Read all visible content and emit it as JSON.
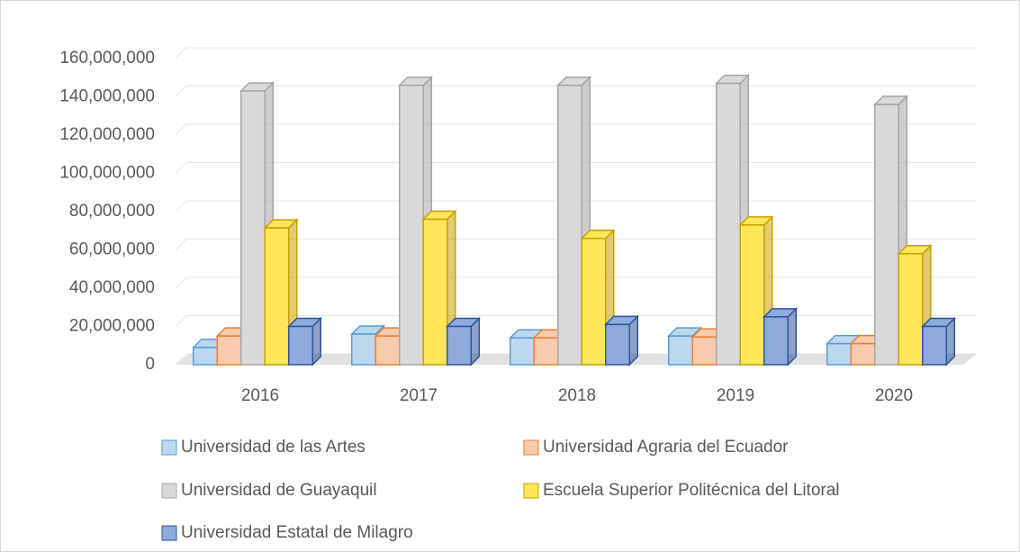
{
  "chart_data": {
    "type": "bar3d",
    "categories": [
      "2016",
      "2017",
      "2018",
      "2019",
      "2020"
    ],
    "series": [
      {
        "name": "Universidad de las Artes",
        "color": "#bdd7ee",
        "edge": "#5b9bd5",
        "values": [
          9000000,
          16000000,
          14000000,
          15000000,
          11000000
        ]
      },
      {
        "name": "Universidad Agraria del Ecuador",
        "color": "#f8cbad",
        "edge": "#ed7d31",
        "values": [
          15000000,
          15000000,
          14000000,
          14500000,
          11000000
        ]
      },
      {
        "name": "Universidad de Guayaquil",
        "color": "#d9d9d9",
        "edge": "#a5a5a5",
        "values": [
          143000000,
          146000000,
          146000000,
          147000000,
          136000000
        ]
      },
      {
        "name": "Escuela Superior Politécnica del Litoral",
        "color": "#ffe55a",
        "edge": "#c9a000",
        "values": [
          71500000,
          76000000,
          66000000,
          73000000,
          58000000
        ]
      },
      {
        "name": "Universidad Estatal de Milagro",
        "color": "#8faadc",
        "edge": "#2f5597",
        "values": [
          20000000,
          20000000,
          21000000,
          25000000,
          20000000
        ]
      }
    ],
    "ylim": [
      0,
      160000000
    ],
    "yticks": [
      0,
      {
        "value": 20000000,
        "label": "20,000,000"
      },
      {
        "value": 40000000,
        "label": "40,000,000"
      },
      {
        "value": 60000000,
        "label": "60,000,000"
      },
      {
        "value": 80000000,
        "label": "80,000,000"
      },
      {
        "value": 100000000,
        "label": "100,000,000"
      },
      {
        "value": 120000000,
        "label": "120,000,000"
      },
      {
        "value": 140000000,
        "label": "140,000,000"
      },
      {
        "value": 160000000,
        "label": "160,000,000"
      }
    ],
    "grid": true,
    "legend": "bottom"
  }
}
